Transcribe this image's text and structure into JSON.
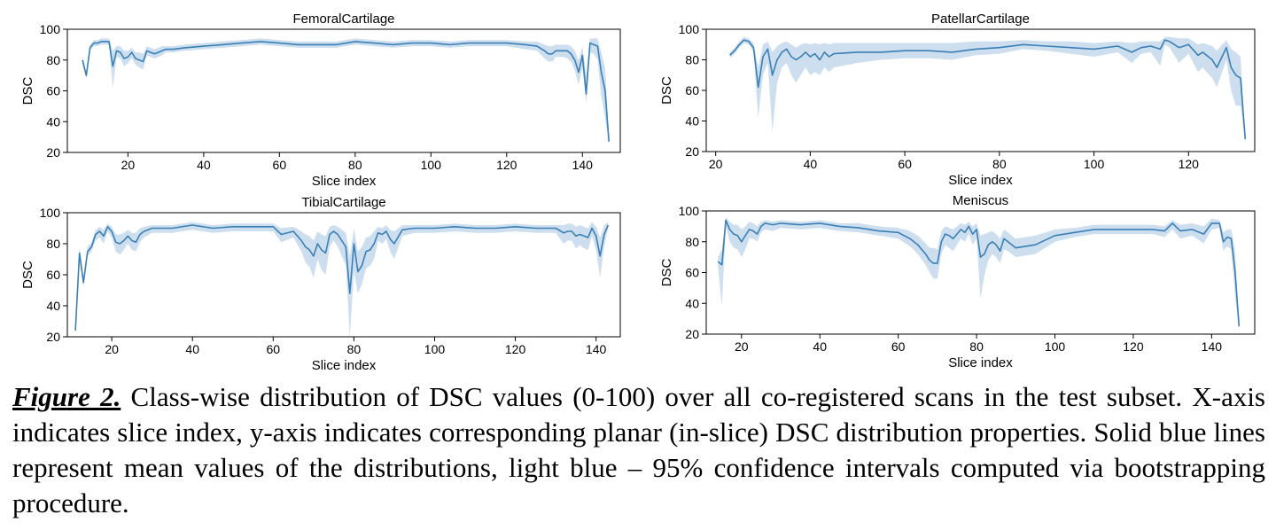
{
  "chart_data": [
    {
      "type": "line",
      "title": "FemoralCartilage",
      "xlabel": "Slice index",
      "ylabel": "DSC",
      "xlim": [
        4,
        150
      ],
      "ylim": [
        20,
        100
      ],
      "xticks": [
        20,
        40,
        60,
        80,
        100,
        120,
        140
      ],
      "yticks": [
        20,
        40,
        60,
        80,
        100
      ],
      "series": [
        {
          "name": "mean",
          "x": [
            8,
            9,
            10,
            11,
            12,
            13,
            14,
            15,
            16,
            17,
            18,
            19,
            20,
            21,
            22,
            23,
            24,
            25,
            26,
            27,
            28,
            29,
            30,
            32,
            35,
            40,
            45,
            50,
            55,
            60,
            65,
            70,
            75,
            80,
            85,
            90,
            95,
            100,
            105,
            110,
            115,
            120,
            125,
            128,
            130,
            131,
            132,
            133,
            134,
            135,
            136,
            137,
            138,
            139,
            140,
            141,
            142,
            143,
            144,
            145,
            146,
            147
          ],
          "mean": [
            80,
            70,
            88,
            91,
            91,
            92,
            92,
            92,
            76,
            86,
            85,
            81,
            82,
            85,
            81,
            80,
            79,
            86,
            85,
            84,
            85,
            86,
            87,
            87,
            88,
            89,
            90,
            91,
            92,
            91,
            90,
            90,
            90,
            92,
            91,
            90,
            91,
            91,
            90,
            91,
            91,
            91,
            90,
            89,
            86,
            84,
            84,
            86,
            86,
            86,
            86,
            84,
            80,
            72,
            83,
            58,
            91,
            90,
            89,
            72,
            60,
            27
          ],
          "lower": [
            77,
            68,
            86,
            89,
            89,
            90,
            90,
            90,
            62,
            82,
            81,
            76,
            78,
            81,
            77,
            75,
            74,
            83,
            82,
            81,
            82,
            83,
            85,
            85,
            86,
            87,
            88,
            89,
            90,
            89,
            88,
            88,
            88,
            90,
            89,
            88,
            89,
            89,
            88,
            89,
            89,
            89,
            87,
            86,
            81,
            79,
            79,
            82,
            82,
            82,
            81,
            79,
            73,
            64,
            75,
            52,
            85,
            84,
            80,
            56,
            42,
            25
          ],
          "upper": [
            83,
            72,
            90,
            93,
            93,
            94,
            94,
            94,
            86,
            89,
            89,
            86,
            86,
            88,
            85,
            85,
            84,
            89,
            88,
            87,
            88,
            89,
            89,
            89,
            90,
            91,
            92,
            93,
            94,
            93,
            92,
            92,
            92,
            94,
            93,
            92,
            93,
            93,
            92,
            93,
            93,
            93,
            92,
            92,
            90,
            89,
            89,
            90,
            90,
            90,
            90,
            89,
            86,
            80,
            89,
            70,
            94,
            94,
            94,
            85,
            75,
            30
          ]
        }
      ]
    },
    {
      "type": "line",
      "title": "PatellarCartilage",
      "xlabel": "Slice index",
      "ylabel": "DSC",
      "xlim": [
        18,
        134
      ],
      "ylim": [
        20,
        100
      ],
      "xticks": [
        20,
        40,
        60,
        80,
        100,
        120
      ],
      "yticks": [
        20,
        40,
        60,
        80,
        100
      ],
      "series": [
        {
          "name": "mean",
          "x": [
            23,
            24,
            25,
            26,
            27,
            28,
            29,
            30,
            31,
            32,
            33,
            34,
            35,
            36,
            37,
            38,
            39,
            40,
            41,
            42,
            43,
            44,
            45,
            50,
            55,
            60,
            65,
            70,
            75,
            80,
            85,
            90,
            95,
            100,
            105,
            108,
            110,
            112,
            114,
            115,
            116,
            118,
            120,
            122,
            123,
            125,
            126,
            128,
            129,
            130,
            131,
            132
          ],
          "mean": [
            83,
            86,
            90,
            93,
            92,
            88,
            62,
            82,
            87,
            70,
            80,
            85,
            87,
            82,
            80,
            82,
            85,
            82,
            84,
            80,
            85,
            82,
            84,
            85,
            85,
            86,
            86,
            85,
            87,
            88,
            90,
            89,
            88,
            87,
            89,
            85,
            88,
            89,
            87,
            93,
            92,
            88,
            90,
            83,
            85,
            80,
            75,
            88,
            75,
            70,
            68,
            28
          ],
          "lower": [
            81,
            84,
            88,
            91,
            90,
            85,
            42,
            70,
            78,
            33,
            65,
            75,
            78,
            70,
            65,
            70,
            75,
            70,
            72,
            70,
            75,
            72,
            75,
            78,
            80,
            81,
            81,
            80,
            83,
            84,
            87,
            86,
            84,
            82,
            85,
            78,
            84,
            85,
            76,
            90,
            88,
            78,
            84,
            72,
            75,
            68,
            62,
            80,
            60,
            50,
            50,
            26
          ],
          "upper": [
            85,
            88,
            92,
            95,
            94,
            91,
            75,
            90,
            92,
            85,
            89,
            91,
            92,
            90,
            88,
            90,
            91,
            90,
            91,
            90,
            91,
            90,
            91,
            91,
            91,
            91,
            91,
            91,
            92,
            92,
            93,
            92,
            92,
            91,
            92,
            91,
            92,
            92,
            92,
            95,
            95,
            94,
            94,
            90,
            91,
            89,
            86,
            93,
            87,
            85,
            82,
            30
          ]
        }
      ]
    },
    {
      "type": "line",
      "title": "TibialCartilage",
      "xlabel": "Slice index",
      "ylabel": "DSC",
      "xlim": [
        9,
        146
      ],
      "ylim": [
        20,
        100
      ],
      "xticks": [
        20,
        40,
        60,
        80,
        100,
        120,
        140
      ],
      "yticks": [
        20,
        40,
        60,
        80,
        100
      ],
      "series": [
        {
          "name": "mean",
          "x": [
            11,
            12,
            13,
            14,
            15,
            16,
            17,
            18,
            19,
            20,
            21,
            22,
            23,
            24,
            25,
            26,
            27,
            28,
            30,
            35,
            40,
            45,
            50,
            55,
            60,
            62,
            65,
            67,
            68,
            69,
            70,
            71,
            72,
            73,
            74,
            75,
            76,
            77,
            78,
            79,
            80,
            81,
            82,
            83,
            84,
            85,
            86,
            87,
            88,
            89,
            90,
            92,
            95,
            100,
            105,
            110,
            115,
            120,
            125,
            130,
            132,
            133,
            134,
            135,
            136,
            137,
            138,
            139,
            140,
            141,
            142,
            143
          ],
          "mean": [
            24,
            74,
            55,
            75,
            78,
            86,
            88,
            85,
            91,
            88,
            81,
            80,
            82,
            85,
            82,
            81,
            86,
            88,
            90,
            90,
            92,
            90,
            91,
            91,
            91,
            86,
            88,
            82,
            78,
            76,
            72,
            80,
            76,
            74,
            86,
            88,
            86,
            82,
            78,
            48,
            80,
            62,
            66,
            75,
            76,
            80,
            87,
            86,
            88,
            83,
            80,
            89,
            90,
            90,
            91,
            90,
            90,
            91,
            90,
            90,
            87,
            88,
            88,
            85,
            86,
            85,
            84,
            90,
            85,
            72,
            86,
            92
          ],
          "lower": [
            22,
            70,
            52,
            72,
            75,
            82,
            84,
            80,
            88,
            84,
            75,
            73,
            76,
            80,
            76,
            75,
            81,
            84,
            87,
            87,
            89,
            87,
            88,
            88,
            88,
            81,
            84,
            75,
            68,
            65,
            58,
            70,
            63,
            60,
            78,
            82,
            78,
            72,
            66,
            20,
            62,
            48,
            54,
            64,
            66,
            70,
            82,
            80,
            83,
            75,
            70,
            85,
            87,
            87,
            88,
            87,
            87,
            88,
            87,
            87,
            80,
            82,
            82,
            77,
            79,
            77,
            76,
            85,
            76,
            58,
            78,
            90
          ],
          "upper": [
            26,
            78,
            58,
            78,
            81,
            89,
            91,
            89,
            93,
            91,
            86,
            86,
            87,
            89,
            87,
            87,
            90,
            91,
            92,
            92,
            94,
            92,
            93,
            93,
            93,
            90,
            91,
            88,
            86,
            85,
            82,
            88,
            86,
            85,
            91,
            92,
            91,
            89,
            87,
            72,
            90,
            75,
            78,
            84,
            85,
            88,
            91,
            90,
            92,
            89,
            88,
            92,
            92,
            92,
            93,
            92,
            92,
            93,
            92,
            92,
            92,
            93,
            93,
            91,
            92,
            91,
            90,
            94,
            91,
            84,
            92,
            94
          ]
        }
      ]
    },
    {
      "type": "line",
      "title": "Meniscus",
      "xlabel": "Slice index",
      "ylabel": "DSC",
      "xlim": [
        11,
        151
      ],
      "ylim": [
        20,
        100
      ],
      "xticks": [
        20,
        40,
        60,
        80,
        100,
        120,
        140
      ],
      "yticks": [
        20,
        40,
        60,
        80,
        100
      ],
      "series": [
        {
          "name": "mean",
          "x": [
            14,
            15,
            16,
            17,
            18,
            19,
            20,
            21,
            22,
            23,
            24,
            25,
            26,
            28,
            30,
            35,
            40,
            45,
            50,
            55,
            60,
            63,
            65,
            67,
            68,
            69,
            70,
            71,
            72,
            73,
            74,
            75,
            76,
            77,
            78,
            79,
            80,
            81,
            82,
            83,
            84,
            85,
            86,
            87,
            88,
            90,
            95,
            100,
            105,
            110,
            115,
            120,
            125,
            128,
            130,
            132,
            135,
            138,
            140,
            142,
            143,
            144,
            145,
            146,
            147
          ],
          "mean": [
            67,
            65,
            94,
            88,
            85,
            84,
            80,
            84,
            88,
            87,
            85,
            90,
            92,
            91,
            92,
            91,
            92,
            90,
            89,
            87,
            86,
            82,
            78,
            72,
            68,
            66,
            66,
            80,
            85,
            84,
            82,
            85,
            88,
            86,
            90,
            85,
            88,
            70,
            72,
            78,
            80,
            78,
            74,
            82,
            80,
            76,
            78,
            84,
            86,
            88,
            88,
            88,
            88,
            87,
            92,
            87,
            88,
            85,
            92,
            92,
            80,
            83,
            82,
            60,
            25
          ],
          "lower": [
            64,
            38,
            90,
            80,
            76,
            75,
            70,
            75,
            82,
            82,
            80,
            86,
            88,
            87,
            89,
            88,
            89,
            87,
            86,
            84,
            82,
            77,
            72,
            65,
            60,
            56,
            56,
            72,
            78,
            76,
            74,
            78,
            82,
            80,
            85,
            78,
            82,
            43,
            58,
            68,
            72,
            70,
            66,
            75,
            74,
            70,
            72,
            80,
            83,
            85,
            85,
            85,
            85,
            83,
            88,
            82,
            84,
            79,
            88,
            89,
            74,
            77,
            75,
            44,
            23
          ],
          "upper": [
            70,
            75,
            96,
            93,
            91,
            91,
            88,
            90,
            93,
            92,
            90,
            93,
            94,
            93,
            94,
            93,
            94,
            92,
            92,
            90,
            89,
            87,
            84,
            79,
            76,
            76,
            75,
            87,
            90,
            89,
            88,
            90,
            92,
            91,
            93,
            90,
            92,
            84,
            85,
            86,
            87,
            85,
            82,
            88,
            86,
            82,
            84,
            88,
            89,
            91,
            91,
            91,
            91,
            90,
            94,
            91,
            92,
            90,
            95,
            94,
            86,
            88,
            88,
            74,
            27
          ]
        }
      ]
    }
  ],
  "caption": {
    "label": "Figure 2.",
    "text": " Class-wise distribution of DSC values (0-100) over all co-registered scans in the test subset. X-axis indicates slice index, y-axis indicates corresponding planar (in-slice) DSC distribution properties. Solid blue lines represent mean values of the distributions, light blue – 95% confidence intervals computed via bootstrapping procedure."
  },
  "colors": {
    "line": "#3a7fb5",
    "band": "#bcd4ea",
    "axis": "#000000"
  }
}
